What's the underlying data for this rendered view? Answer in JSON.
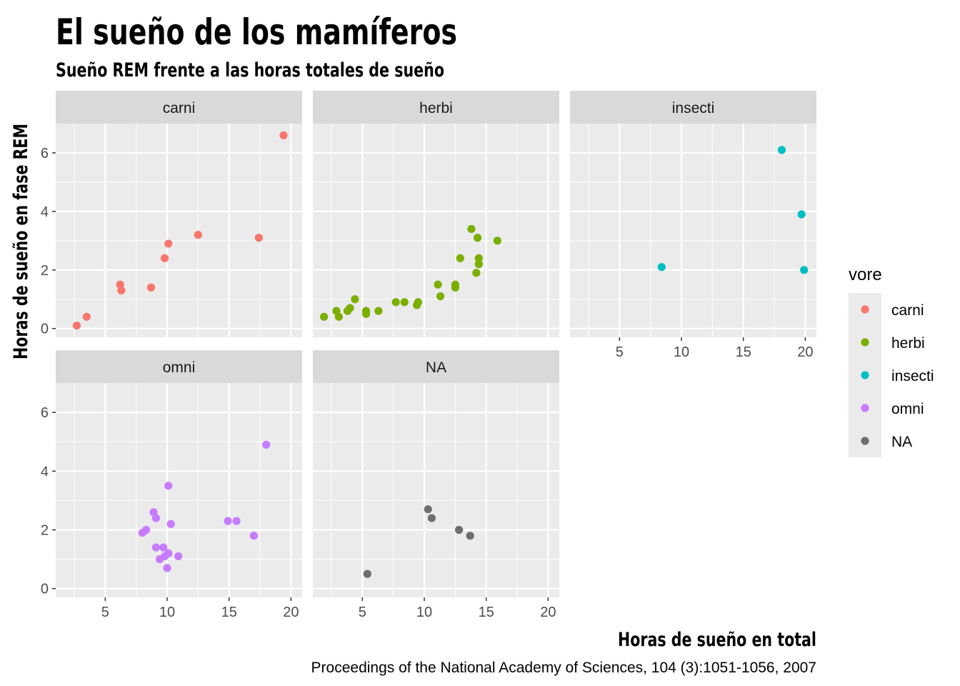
{
  "chart_data": {
    "type": "scatter",
    "title": "El sueño de los mamíferos",
    "subtitle": "Sueño REM frente a las horas totales de sueño",
    "xlabel": "Horas de sueño en total",
    "ylabel": "Horas de sueño en fase REM",
    "caption": "Proceedings of the National Academy of Sciences, 104 (3):1051-1056, 2007",
    "xlim": [
      1.0,
      20.9
    ],
    "ylim": [
      -0.3,
      7.0
    ],
    "x_ticks": [
      5,
      10,
      15,
      20
    ],
    "y_ticks": [
      0,
      2,
      4,
      6
    ],
    "x_tick_labels": [
      "5",
      "10",
      "15",
      "20"
    ],
    "y_tick_labels": [
      "0",
      "2",
      "4",
      "6"
    ],
    "grid": true,
    "legend": {
      "title": "vore",
      "position": "right",
      "entries": [
        "carni",
        "herbi",
        "insecti",
        "omni",
        "NA"
      ]
    },
    "colors": {
      "carni": "#F8766D",
      "herbi": "#7CAE00",
      "insecti": "#00BFC4",
      "omni": "#C77CFF",
      "NA": "#6E6E6E"
    },
    "series": [
      {
        "name": "carni",
        "points": [
          [
            2.7,
            0.1
          ],
          [
            3.5,
            0.4
          ],
          [
            6.2,
            1.5
          ],
          [
            6.3,
            1.3
          ],
          [
            8.7,
            1.4
          ],
          [
            9.8,
            2.4
          ],
          [
            10.1,
            2.9
          ],
          [
            12.5,
            3.2
          ],
          [
            17.4,
            3.1
          ],
          [
            19.4,
            6.6
          ]
        ]
      },
      {
        "name": "herbi",
        "points": [
          [
            1.9,
            0.4
          ],
          [
            2.9,
            0.6
          ],
          [
            3.1,
            0.4
          ],
          [
            3.8,
            0.6
          ],
          [
            4.0,
            0.7
          ],
          [
            4.4,
            1.0
          ],
          [
            5.3,
            0.6
          ],
          [
            5.3,
            0.5
          ],
          [
            6.3,
            0.6
          ],
          [
            7.7,
            0.9
          ],
          [
            8.4,
            0.9
          ],
          [
            9.4,
            0.8
          ],
          [
            9.5,
            0.9
          ],
          [
            11.1,
            1.5
          ],
          [
            11.3,
            1.1
          ],
          [
            12.5,
            1.5
          ],
          [
            12.5,
            1.4
          ],
          [
            12.9,
            2.4
          ],
          [
            13.8,
            3.4
          ],
          [
            14.2,
            1.9
          ],
          [
            14.3,
            3.1
          ],
          [
            14.4,
            2.4
          ],
          [
            14.4,
            2.2
          ],
          [
            15.9,
            3.0
          ]
        ]
      },
      {
        "name": "insecti",
        "points": [
          [
            8.4,
            2.1
          ],
          [
            18.1,
            6.1
          ],
          [
            19.7,
            3.9
          ],
          [
            19.9,
            2.0
          ]
        ]
      },
      {
        "name": "omni",
        "points": [
          [
            8.0,
            1.9
          ],
          [
            8.3,
            2.0
          ],
          [
            8.9,
            2.6
          ],
          [
            9.1,
            2.4
          ],
          [
            9.1,
            1.4
          ],
          [
            9.4,
            1.0
          ],
          [
            9.7,
            1.4
          ],
          [
            9.8,
            1.1
          ],
          [
            10.0,
            0.7
          ],
          [
            10.1,
            3.5
          ],
          [
            10.1,
            1.2
          ],
          [
            10.3,
            2.2
          ],
          [
            10.9,
            1.1
          ],
          [
            14.9,
            2.3
          ],
          [
            15.6,
            2.3
          ],
          [
            17.0,
            1.8
          ],
          [
            18.0,
            4.9
          ]
        ]
      },
      {
        "name": "NA",
        "points": [
          [
            5.4,
            0.5
          ],
          [
            10.3,
            2.7
          ],
          [
            10.6,
            2.4
          ],
          [
            12.8,
            2.0
          ],
          [
            13.7,
            1.8
          ]
        ]
      }
    ],
    "panels": [
      {
        "name": "carni",
        "series": "carni"
      },
      {
        "name": "herbi",
        "series": "herbi"
      },
      {
        "name": "insecti",
        "series": "insecti"
      },
      {
        "name": "omni",
        "series": "omni"
      },
      {
        "name": "NA",
        "series": "NA"
      }
    ]
  }
}
